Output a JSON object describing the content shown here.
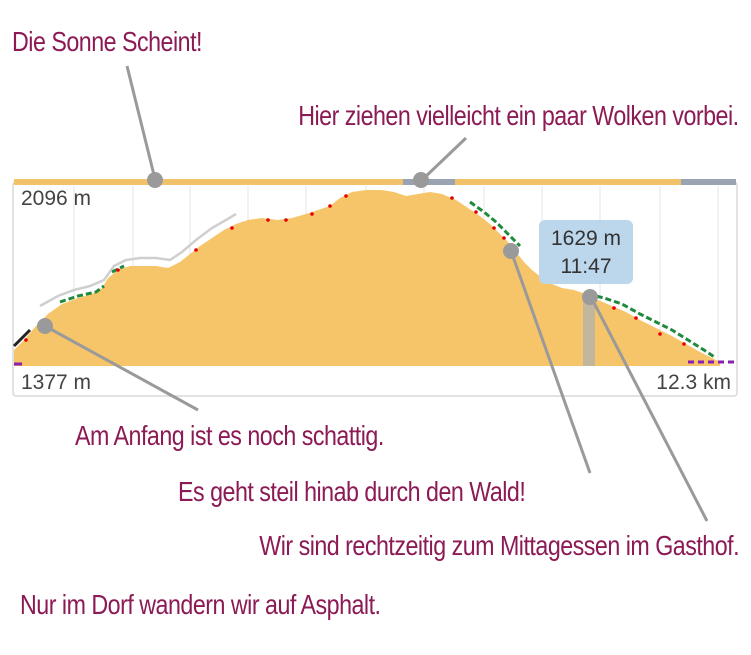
{
  "annotations": {
    "sun": "Die Sonne Scheint!",
    "clouds": "Hier ziehen vielleicht ein paar Wolken vorbei.",
    "shade": "Am Anfang ist es noch schattig.",
    "forest": "Es geht steil hinab durch den Wald!",
    "lunch": "Wir sind rechtzeitig zum Mittagessen im Gasthof.",
    "asphalt": "Nur im Dorf wandern wir auf Asphalt."
  },
  "profile": {
    "max_elevation_label": "2096 m",
    "min_elevation_label": "1377 m",
    "distance_label": "12.3 km",
    "tooltip": {
      "elevation": "1629 m",
      "time": "11:47"
    }
  },
  "colors": {
    "annotation_text": "#8b1a55",
    "terrain_fill": "#f6c56a",
    "sun_bar": "#f2c26a",
    "cloud_bar": "#9aa3b2",
    "forest_trail": "#1f8a3c",
    "asphalt": "#8a1fb0",
    "steep_marks": "#e60000",
    "tooltip_bg": "#bcd6ec",
    "pointer": "#9a9a9a"
  }
}
